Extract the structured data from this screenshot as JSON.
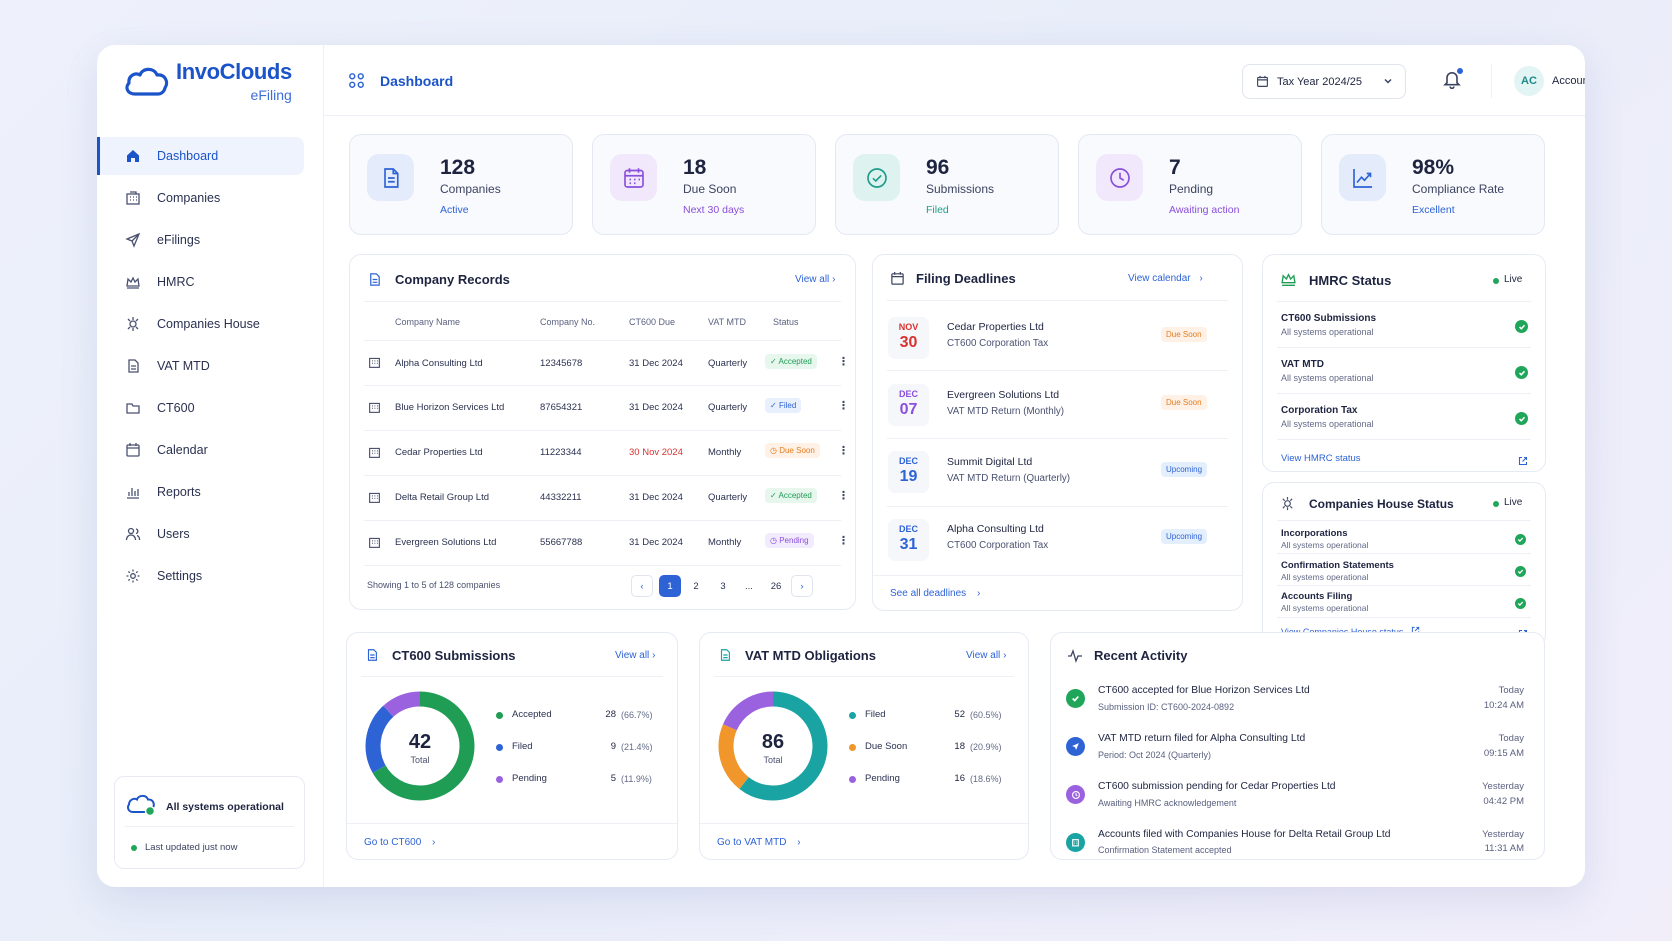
{
  "brand": {
    "name": "InvoClouds",
    "sub": "eFiling"
  },
  "sidebar": {
    "items": [
      {
        "label": "Dashboard",
        "icon": "home-icon"
      },
      {
        "label": "Companies",
        "icon": "building-icon"
      },
      {
        "label": "eFilings",
        "icon": "send-icon"
      },
      {
        "label": "HMRC",
        "icon": "crown-icon"
      },
      {
        "label": "Companies House",
        "icon": "crest-icon"
      },
      {
        "label": "VAT MTD",
        "icon": "document-icon"
      },
      {
        "label": "CT600",
        "icon": "folder-icon"
      },
      {
        "label": "Calendar",
        "icon": "calendar-icon"
      },
      {
        "label": "Reports",
        "icon": "bar-chart-icon"
      },
      {
        "label": "Users",
        "icon": "users-icon"
      },
      {
        "label": "Settings",
        "icon": "gear-icon"
      }
    ],
    "status_title": "All systems operational",
    "status_updated": "Last updated just now"
  },
  "header": {
    "title": "Dashboard",
    "tax_year": "Tax Year 2024/25",
    "user_initials": "AC",
    "user_role": "Accountant"
  },
  "stats": [
    {
      "value": "128",
      "label": "Companies",
      "sub": "Active",
      "color": "#2e63d6"
    },
    {
      "value": "18",
      "label": "Due Soon",
      "sub": "Next 30 days",
      "color": "#8a4fdc"
    },
    {
      "value": "96",
      "label": "Submissions",
      "sub": "Filed",
      "color": "#1f9d8a"
    },
    {
      "value": "7",
      "label": "Pending",
      "sub": "Awaiting action",
      "color": "#8a4fdc"
    },
    {
      "value": "98%",
      "label": "Compliance Rate",
      "sub": "Excellent",
      "color": "#2e63d6"
    }
  ],
  "company_records": {
    "title": "Company Records",
    "view_all": "View all",
    "columns": [
      "Company Name",
      "Company No.",
      "CT600 Due",
      "VAT MTD",
      "Status"
    ],
    "rows": [
      {
        "name": "Alpha Consulting Ltd",
        "number": "12345678",
        "ct600_due": "31 Dec 2024",
        "vat": "Quarterly",
        "status": "Accepted",
        "kind": "acc"
      },
      {
        "name": "Blue Horizon Services Ltd",
        "number": "87654321",
        "ct600_due": "31 Dec 2024",
        "vat": "Quarterly",
        "status": "Filed",
        "kind": "fil"
      },
      {
        "name": "Cedar Properties Ltd",
        "number": "11223344",
        "ct600_due": "30 Nov 2024",
        "vat": "Monthly",
        "status": "Due Soon",
        "kind": "due"
      },
      {
        "name": "Delta Retail Group Ltd",
        "number": "44332211",
        "ct600_due": "31 Dec 2024",
        "vat": "Quarterly",
        "status": "Accepted",
        "kind": "acc"
      },
      {
        "name": "Evergreen Solutions Ltd",
        "number": "55667788",
        "ct600_due": "31 Dec 2024",
        "vat": "Monthly",
        "status": "Pending",
        "kind": "pen"
      }
    ],
    "showing": "Showing 1 to 5 of 128 companies",
    "pages": [
      "1",
      "2",
      "3",
      "...",
      "26"
    ]
  },
  "deadlines": {
    "title": "Filing Deadlines",
    "view_calendar": "View calendar",
    "items": [
      {
        "month": "NOV",
        "day": "30",
        "name": "Cedar Properties Ltd",
        "desc": "CT600 Corporation Tax",
        "badge": "Due Soon",
        "kind": "due",
        "color": "#d8322e"
      },
      {
        "month": "DEC",
        "day": "07",
        "name": "Evergreen Solutions Ltd",
        "desc": "VAT MTD Return (Monthly)",
        "badge": "Due Soon",
        "kind": "due",
        "color": "#8a4fdc"
      },
      {
        "month": "DEC",
        "day": "19",
        "name": "Summit Digital Ltd",
        "desc": "VAT MTD Return (Quarterly)",
        "badge": "Upcoming",
        "kind": "up",
        "color": "#2e63d6"
      },
      {
        "month": "DEC",
        "day": "31",
        "name": "Alpha Consulting Ltd",
        "desc": "CT600 Corporation Tax",
        "badge": "Upcoming",
        "kind": "up",
        "color": "#2e63d6"
      }
    ],
    "see_all": "See all deadlines"
  },
  "hmrc": {
    "title": "HMRC Status",
    "live": "Live",
    "items": [
      {
        "name": "CT600 Submissions",
        "sub": "All systems operational"
      },
      {
        "name": "VAT MTD",
        "sub": "All systems operational"
      },
      {
        "name": "Corporation Tax",
        "sub": "All systems operational"
      }
    ],
    "link": "View HMRC status"
  },
  "companies_house": {
    "title": "Companies House Status",
    "live": "Live",
    "items": [
      {
        "name": "Incorporations",
        "sub": "All systems operational"
      },
      {
        "name": "Confirmation Statements",
        "sub": "All systems operational"
      },
      {
        "name": "Accounts Filing",
        "sub": "All systems operational"
      }
    ],
    "link": "View Companies House status"
  },
  "ct600": {
    "title": "CT600 Submissions",
    "view_all": "View all",
    "total": "42",
    "total_label": "Total",
    "legend": [
      {
        "label": "Accepted",
        "value": "28",
        "pct": "(66.7%)",
        "color": "#1f9d55"
      },
      {
        "label": "Filed",
        "value": "9",
        "pct": "(21.4%)",
        "color": "#2e63d6"
      },
      {
        "label": "Pending",
        "value": "5",
        "pct": "(11.9%)",
        "color": "#9b62e0"
      }
    ],
    "link": "Go to CT600"
  },
  "vat": {
    "title": "VAT MTD Obligations",
    "view_all": "View all",
    "total": "86",
    "total_label": "Total",
    "legend": [
      {
        "label": "Filed",
        "value": "52",
        "pct": "(60.5%)",
        "color": "#1aa3a3"
      },
      {
        "label": "Due Soon",
        "value": "18",
        "pct": "(20.9%)",
        "color": "#f0962b"
      },
      {
        "label": "Pending",
        "value": "16",
        "pct": "(18.6%)",
        "color": "#9b62e0"
      }
    ],
    "link": "Go to VAT MTD"
  },
  "activity": {
    "title": "Recent Activity",
    "items": [
      {
        "title": "CT600 accepted for Blue Horizon Services Ltd",
        "sub": "Submission ID: CT600-2024-0892",
        "date": "Today",
        "time": "10:24 AM",
        "color": "#20a65a",
        "icon": "check-icon"
      },
      {
        "title": "VAT MTD return filed for Alpha Consulting Ltd",
        "sub": "Period: Oct 2024 (Quarterly)",
        "date": "Today",
        "time": "09:15 AM",
        "color": "#2e63d6",
        "icon": "send-icon"
      },
      {
        "title": "CT600 submission pending for Cedar Properties Ltd",
        "sub": "Awaiting HMRC acknowledgement",
        "date": "Yesterday",
        "time": "04:42 PM",
        "color": "#9b62e0",
        "icon": "clock-icon"
      },
      {
        "title": "Accounts filed with Companies House for Delta Retail Group Ltd",
        "sub": "Confirmation Statement accepted",
        "date": "Yesterday",
        "time": "11:31 AM",
        "color": "#1aa3a3",
        "icon": "building-icon"
      }
    ]
  }
}
